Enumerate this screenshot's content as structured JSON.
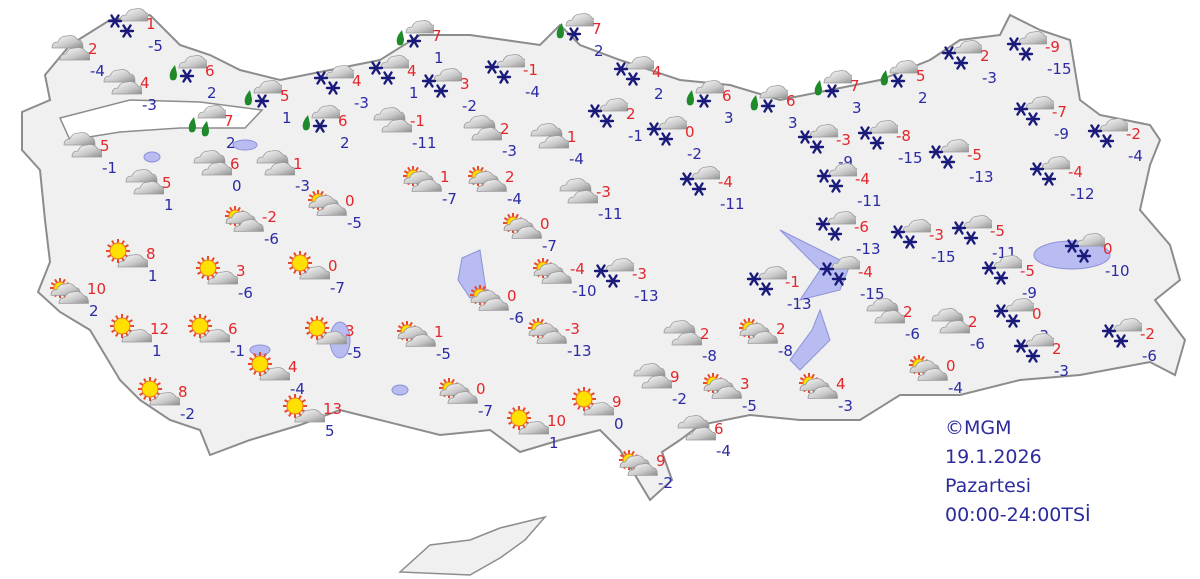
{
  "map": {
    "copyright": "©MGM",
    "date": "19.1.2026",
    "weekday": "Pazartesi",
    "period": "00:00-24:00TSİ"
  },
  "colors": {
    "max_temp": "#e3262b",
    "min_temp": "#2a2aa5",
    "land": "#f0f0f0",
    "lakes": "#b8bcf0",
    "legend_text": "#2b2b9b"
  },
  "stations": [
    {
      "icon": "snow",
      "max": "1",
      "min": "-5"
    },
    {
      "icon": "cloudy",
      "max": "2",
      "min": "-4"
    },
    {
      "icon": "cloudy",
      "max": "4",
      "min": "-3"
    },
    {
      "icon": "rain-snow",
      "max": "6",
      "min": "2"
    },
    {
      "icon": "rain-snow",
      "max": "5",
      "min": "1"
    },
    {
      "icon": "rain",
      "max": "7",
      "min": "2"
    },
    {
      "icon": "rain-snow",
      "max": "6",
      "min": "2"
    },
    {
      "icon": "cloudy",
      "max": "5",
      "min": "-1"
    },
    {
      "icon": "cloudy",
      "max": "5",
      "min": "1"
    },
    {
      "icon": "cloudy",
      "max": "6",
      "min": "0"
    },
    {
      "icon": "cloudy",
      "max": "1",
      "min": "-3"
    },
    {
      "icon": "partly-cloudy",
      "max": "0",
      "min": "-5"
    },
    {
      "icon": "partly-cloudy",
      "max": "-2",
      "min": "-6"
    },
    {
      "icon": "partly-cloudy",
      "max": "1",
      "min": "-7"
    },
    {
      "icon": "snow",
      "max": "4",
      "min": "-3"
    },
    {
      "icon": "snow",
      "max": "4",
      "min": "1"
    },
    {
      "icon": "rain-snow",
      "max": "7",
      "min": "1"
    },
    {
      "icon": "cloudy",
      "max": "-1",
      "min": "-11"
    },
    {
      "icon": "snow",
      "max": "3",
      "min": "-2"
    },
    {
      "icon": "snow",
      "max": "-1",
      "min": "-4"
    },
    {
      "icon": "cloudy",
      "max": "2",
      "min": "-3"
    },
    {
      "icon": "partly-cloudy",
      "max": "2",
      "min": "-4"
    },
    {
      "icon": "cloudy",
      "max": "1",
      "min": "-4"
    },
    {
      "icon": "cloudy",
      "max": "-3",
      "min": "-11"
    },
    {
      "icon": "rain-snow",
      "max": "7",
      "min": "2"
    },
    {
      "icon": "snow",
      "max": "4",
      "min": "2"
    },
    {
      "icon": "snow",
      "max": "2",
      "min": "-1"
    },
    {
      "icon": "snow",
      "max": "0",
      "min": "-2"
    },
    {
      "icon": "rain-snow",
      "max": "6",
      "min": "3"
    },
    {
      "icon": "rain-snow",
      "max": "6",
      "min": "3"
    },
    {
      "icon": "rain-snow",
      "max": "7",
      "min": "3"
    },
    {
      "icon": "rain-snow",
      "max": "5",
      "min": "2"
    },
    {
      "icon": "snow",
      "max": "-4",
      "min": "-11"
    },
    {
      "icon": "snow",
      "max": "-3",
      "min": "-9"
    },
    {
      "icon": "snow",
      "max": "-8",
      "min": "-15"
    },
    {
      "icon": "snow",
      "max": "-4",
      "min": "-11"
    },
    {
      "icon": "snow",
      "max": "2",
      "min": "-3"
    },
    {
      "icon": "snow",
      "max": "-9",
      "min": "-15"
    },
    {
      "icon": "snow",
      "max": "-5",
      "min": "-13"
    },
    {
      "icon": "snow",
      "max": "-7",
      "min": "-9"
    },
    {
      "icon": "snow",
      "max": "-2",
      "min": "-4"
    },
    {
      "icon": "snow",
      "max": "-4",
      "min": "-12"
    },
    {
      "icon": "partly-cloudy",
      "max": "0",
      "min": "-7"
    },
    {
      "icon": "partly-cloudy",
      "max": "-4",
      "min": "-10"
    },
    {
      "icon": "snow",
      "max": "-3",
      "min": "-13"
    },
    {
      "icon": "partly-cloudy",
      "max": "0",
      "min": "-6"
    },
    {
      "icon": "sunny-cloud",
      "max": "8",
      "min": "1"
    },
    {
      "icon": "sunny-cloud",
      "max": "3",
      "min": "-6"
    },
    {
      "icon": "sunny-cloud",
      "max": "0",
      "min": "-7"
    },
    {
      "icon": "partly-cloudy",
      "max": "10",
      "min": "2"
    },
    {
      "icon": "sunny-cloud",
      "max": "12",
      "min": "1"
    },
    {
      "icon": "sunny-cloud",
      "max": "6",
      "min": "-1"
    },
    {
      "icon": "sunny-cloud",
      "max": "3",
      "min": "-5"
    },
    {
      "icon": "partly-cloudy",
      "max": "1",
      "min": "-5"
    },
    {
      "icon": "sunny-cloud",
      "max": "4",
      "min": "-4"
    },
    {
      "icon": "sunny-cloud",
      "max": "8",
      "min": "-2"
    },
    {
      "icon": "sunny-cloud",
      "max": "13",
      "min": "5"
    },
    {
      "icon": "partly-cloudy",
      "max": "0",
      "min": "-7"
    },
    {
      "icon": "partly-cloudy",
      "max": "-3",
      "min": "-13"
    },
    {
      "icon": "sunny-cloud",
      "max": "10",
      "min": "1"
    },
    {
      "icon": "sunny-cloud",
      "max": "9",
      "min": "0"
    },
    {
      "icon": "cloudy",
      "max": "2",
      "min": "-8"
    },
    {
      "icon": "partly-cloudy",
      "max": "2",
      "min": "-8"
    },
    {
      "icon": "cloudy",
      "max": "9",
      "min": "-2"
    },
    {
      "icon": "partly-cloudy",
      "max": "3",
      "min": "-5"
    },
    {
      "icon": "partly-cloudy",
      "max": "4",
      "min": "-3"
    },
    {
      "icon": "cloudy",
      "max": "6",
      "min": "-4"
    },
    {
      "icon": "partly-cloudy",
      "max": "9",
      "min": "-2"
    },
    {
      "icon": "snow",
      "max": "-1",
      "min": "-13"
    },
    {
      "icon": "snow",
      "max": "-4",
      "min": "-15"
    },
    {
      "icon": "snow",
      "max": "-6",
      "min": "-13"
    },
    {
      "icon": "snow",
      "max": "-3",
      "min": "-15"
    },
    {
      "icon": "snow",
      "max": "-5",
      "min": "-11"
    },
    {
      "icon": "cloudy",
      "max": "2",
      "min": "-6"
    },
    {
      "icon": "cloudy",
      "max": "2",
      "min": "-6"
    },
    {
      "icon": "snow",
      "max": "-5",
      "min": "-9"
    },
    {
      "icon": "snow",
      "max": "0",
      "min": "-10"
    },
    {
      "icon": "snow",
      "max": "0",
      "min": "-3"
    },
    {
      "icon": "snow",
      "max": "2",
      "min": "-3"
    },
    {
      "icon": "snow",
      "max": "-2",
      "min": "-6"
    },
    {
      "icon": "partly-cloudy",
      "max": "0",
      "min": "-4"
    }
  ]
}
